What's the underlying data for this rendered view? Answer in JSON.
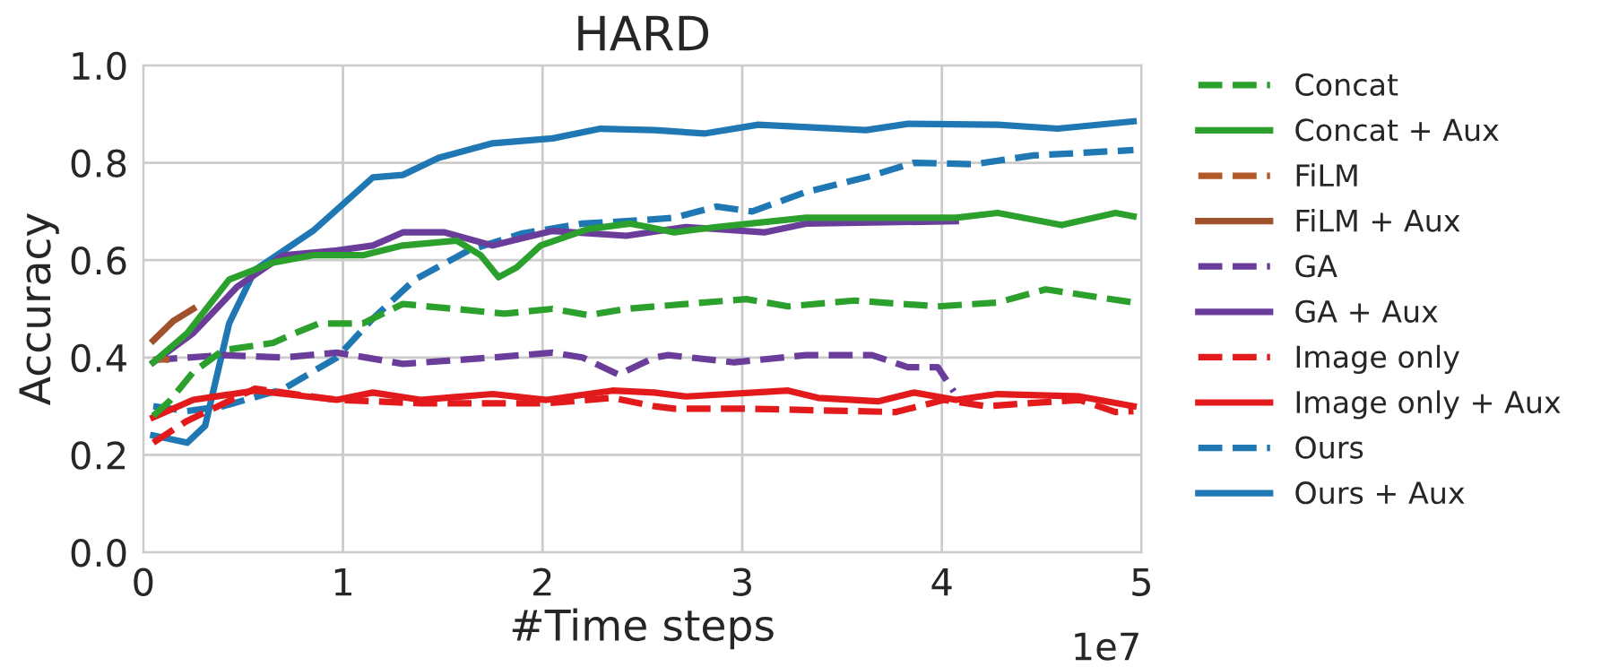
{
  "chart_data": {
    "type": "line",
    "title": "HARD",
    "xlabel": "#Time steps",
    "ylabel": "Accuracy",
    "annotations": [
      "1e7"
    ],
    "xlim": [
      0,
      5
    ],
    "ylim": [
      0,
      1.0
    ],
    "xticks": [
      0,
      1,
      2,
      3,
      4,
      5
    ],
    "yticks": [
      {
        "value": 0,
        "label": "0.0"
      },
      {
        "value": 0.2,
        "label": "0.2"
      },
      {
        "value": 0.4,
        "label": "0.4"
      },
      {
        "value": 0.6,
        "label": "0.6"
      },
      {
        "value": 0.8,
        "label": "0.8"
      },
      {
        "value": 1.0,
        "label": "1.0"
      }
    ],
    "grid": true,
    "legend": "right",
    "marker": "none",
    "series": [
      {
        "name": "Concat",
        "color": "#2ca02c",
        "line_style": "dashed",
        "x": [
          0.05,
          0.13,
          0.25,
          0.4,
          0.65,
          0.76,
          0.88,
          1.1,
          1.3,
          1.81,
          2.05,
          2.23,
          2.42,
          2.72,
          3.02,
          3.23,
          3.56,
          3.98,
          4.28,
          4.52,
          4.96
        ],
        "values": [
          0.28,
          0.31,
          0.37,
          0.415,
          0.43,
          0.45,
          0.47,
          0.47,
          0.51,
          0.49,
          0.5,
          0.487,
          0.5,
          0.51,
          0.52,
          0.505,
          0.517,
          0.505,
          0.513,
          0.54,
          0.513
        ]
      },
      {
        "name": "Concat + Aux",
        "color": "#2ca02c",
        "line_style": "solid",
        "x": [
          0.05,
          0.22,
          0.43,
          0.65,
          0.85,
          1.1,
          1.3,
          1.57,
          1.69,
          1.78,
          1.87,
          1.99,
          2.23,
          2.44,
          2.53,
          2.66,
          2.87,
          3.32,
          4.07,
          4.28,
          4.6,
          4.87,
          4.96
        ],
        "values": [
          0.39,
          0.45,
          0.56,
          0.595,
          0.61,
          0.61,
          0.63,
          0.64,
          0.61,
          0.565,
          0.585,
          0.63,
          0.664,
          0.675,
          0.668,
          0.657,
          0.668,
          0.687,
          0.687,
          0.697,
          0.672,
          0.697,
          0.69
        ]
      },
      {
        "name": "FiLM",
        "color": "#b15928",
        "line_style": "dashed",
        "x": [
          0.05,
          0.09,
          0.13
        ],
        "values": [
          0.395,
          0.397,
          0.395
        ]
      },
      {
        "name": "FiLM + Aux",
        "color": "#a0522d",
        "line_style": "solid",
        "x": [
          0.05,
          0.15,
          0.25
        ],
        "values": [
          0.435,
          0.475,
          0.5
        ]
      },
      {
        "name": "GA",
        "color": "#6a3d9a",
        "line_style": "dashed",
        "x": [
          0.05,
          0.4,
          0.7,
          0.97,
          1.3,
          1.75,
          2.05,
          2.2,
          2.38,
          2.56,
          2.63,
          2.96,
          3.32,
          3.65,
          3.83,
          3.98,
          4.06
        ],
        "values": [
          0.395,
          0.405,
          0.4,
          0.41,
          0.387,
          0.4,
          0.41,
          0.4,
          0.365,
          0.4,
          0.405,
          0.39,
          0.405,
          0.405,
          0.38,
          0.38,
          0.33
        ]
      },
      {
        "name": "GA + Aux",
        "color": "#6a3d9a",
        "line_style": "solid",
        "x": [
          0.05,
          0.25,
          0.47,
          0.7,
          0.97,
          1.15,
          1.3,
          1.51,
          1.75,
          2.05,
          2.42,
          2.72,
          3.11,
          3.32,
          4.07
        ],
        "values": [
          0.39,
          0.45,
          0.545,
          0.61,
          0.62,
          0.63,
          0.657,
          0.657,
          0.63,
          0.66,
          0.65,
          0.668,
          0.657,
          0.675,
          0.68
        ]
      },
      {
        "name": "Image only",
        "color": "#e31a1c",
        "line_style": "dashed",
        "x": [
          0.05,
          0.22,
          0.56,
          0.97,
          1.39,
          2.02,
          2.35,
          2.56,
          2.66,
          3.02,
          3.77,
          4.01,
          4.22,
          4.69,
          4.87,
          4.96
        ],
        "values": [
          0.225,
          0.27,
          0.336,
          0.313,
          0.306,
          0.306,
          0.317,
          0.3,
          0.295,
          0.295,
          0.288,
          0.313,
          0.3,
          0.313,
          0.288,
          0.29
        ]
      },
      {
        "name": "Image only + Aux",
        "color": "#e31a1c",
        "line_style": "solid",
        "x": [
          0.05,
          0.25,
          0.56,
          0.97,
          1.15,
          1.39,
          1.75,
          2.02,
          2.35,
          2.56,
          2.72,
          3.23,
          3.38,
          3.68,
          3.86,
          4.07,
          4.28,
          4.69,
          4.96
        ],
        "values": [
          0.277,
          0.313,
          0.332,
          0.313,
          0.328,
          0.313,
          0.325,
          0.313,
          0.332,
          0.328,
          0.32,
          0.332,
          0.317,
          0.31,
          0.328,
          0.313,
          0.325,
          0.32,
          0.3
        ]
      },
      {
        "name": "Ours",
        "color": "#1f78b4",
        "line_style": "dashed",
        "x": [
          0.05,
          0.22,
          0.4,
          0.7,
          0.97,
          1.15,
          1.36,
          1.63,
          1.9,
          2.2,
          2.42,
          2.66,
          2.87,
          3.05,
          3.32,
          3.62,
          3.86,
          4.16,
          4.46,
          4.96
        ],
        "values": [
          0.3,
          0.29,
          0.3,
          0.335,
          0.4,
          0.48,
          0.56,
          0.62,
          0.655,
          0.675,
          0.68,
          0.687,
          0.71,
          0.7,
          0.74,
          0.77,
          0.8,
          0.797,
          0.815,
          0.826
        ]
      },
      {
        "name": "Ours + Aux",
        "color": "#1f78b4",
        "line_style": "solid",
        "x": [
          0.05,
          0.22,
          0.31,
          0.43,
          0.56,
          0.85,
          1.15,
          1.3,
          1.48,
          1.75,
          2.05,
          2.29,
          2.56,
          2.81,
          3.08,
          3.62,
          3.83,
          4.28,
          4.58,
          4.96
        ],
        "values": [
          0.24,
          0.225,
          0.26,
          0.47,
          0.58,
          0.66,
          0.77,
          0.775,
          0.81,
          0.84,
          0.85,
          0.87,
          0.867,
          0.86,
          0.878,
          0.867,
          0.88,
          0.878,
          0.87,
          0.885
        ]
      }
    ]
  }
}
